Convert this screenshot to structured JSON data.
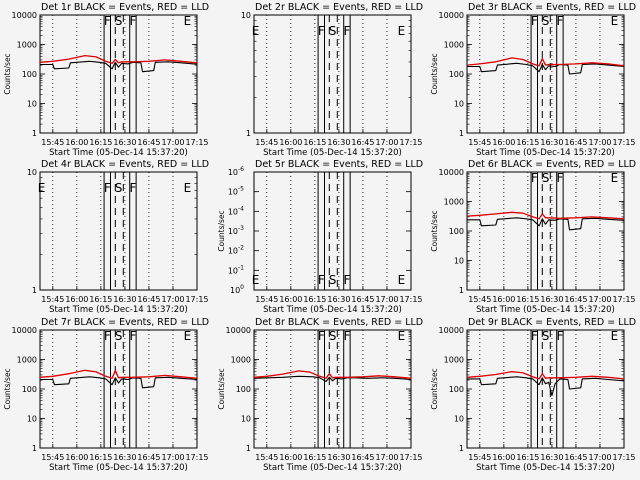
{
  "figure": {
    "background": "#f4f4f4",
    "colors": {
      "events": "#000000",
      "lld": "#dd0000",
      "axes": "#000000"
    }
  },
  "chart_data": [
    {
      "type": "line",
      "title": "Det 1r BLACK = Events, RED = LLD",
      "xlabel": "Start Time (05-Dec-14 15:37:20)",
      "ylabel": "Counts/sec",
      "xlim": [
        "15:37",
        "17:15"
      ],
      "ylim": [
        1,
        10000
      ],
      "yscale": "log",
      "x_ticks": [
        "15:45",
        "16:00",
        "16:15",
        "16:30",
        "16:45",
        "17:00",
        "17:15"
      ],
      "y_ticks": [
        "1",
        "10",
        "100",
        "1000",
        "10000"
      ],
      "solid_lines": [
        "16:17",
        "16:21",
        "16:33",
        "16:37"
      ],
      "dashed_lines": [
        "16:24",
        "16:29"
      ],
      "letters": [
        [
          "F",
          "16:19"
        ],
        [
          "S",
          "16:26"
        ],
        [
          "F",
          "16:35"
        ],
        [
          "E",
          "17:09"
        ]
      ],
      "letter_pos": "top",
      "grid": true,
      "series": [
        {
          "name": "Events",
          "x": [
            "15:37",
            "15:45",
            "15:46",
            "15:55",
            "15:56",
            "16:08",
            "16:14",
            "16:18",
            "16:22",
            "16:24",
            "16:26",
            "16:28",
            "16:32",
            "16:35",
            "16:40",
            "16:41",
            "16:48",
            "16:49",
            "16:57",
            "17:05",
            "17:15"
          ],
          "values": [
            210,
            210,
            150,
            160,
            240,
            270,
            250,
            230,
            150,
            250,
            170,
            230,
            220,
            250,
            240,
            120,
            130,
            250,
            260,
            240,
            215
          ]
        },
        {
          "name": "LLD",
          "x": [
            "15:37",
            "15:45",
            "15:55",
            "16:05",
            "16:12",
            "16:18",
            "16:22",
            "16:24",
            "16:26",
            "16:28",
            "16:35",
            "16:45",
            "16:55",
            "17:05",
            "17:15"
          ],
          "values": [
            250,
            270,
            320,
            420,
            380,
            270,
            230,
            310,
            240,
            260,
            260,
            270,
            300,
            270,
            240
          ]
        }
      ]
    },
    {
      "type": "line",
      "title": "Det 2r BLACK = Events, RED = LLD",
      "xlabel": "Start Time (05-Dec-14 15:37:20)",
      "ylabel": "",
      "xlim": [
        "15:37",
        "17:15"
      ],
      "ylim": [
        1,
        10
      ],
      "yscale": "log",
      "x_ticks": [
        "15:45",
        "16:00",
        "16:15",
        "16:30",
        "16:45",
        "17:00",
        "17:15"
      ],
      "y_ticks": [
        "1",
        "10"
      ],
      "solid_lines": [
        "16:17",
        "16:21",
        "16:33",
        "16:37"
      ],
      "dashed_lines": [
        "16:24",
        "16:29"
      ],
      "letters": [
        [
          "E",
          "15:38"
        ],
        [
          "F",
          "16:19"
        ],
        [
          "S",
          "16:26"
        ],
        [
          "F",
          "16:35"
        ],
        [
          "E",
          "17:09"
        ]
      ],
      "letter_pos": "upper",
      "grid": true,
      "series": []
    },
    {
      "type": "line",
      "title": "Det 3r BLACK = Events, RED = LLD",
      "xlabel": "Start Time (05-Dec-14 15:37:20)",
      "ylabel": "Counts/sec",
      "xlim": [
        "15:37",
        "17:15"
      ],
      "ylim": [
        1,
        10000
      ],
      "yscale": "log",
      "x_ticks": [
        "15:45",
        "16:00",
        "16:15",
        "16:30",
        "16:45",
        "17:00",
        "17:15"
      ],
      "y_ticks": [
        "1",
        "10",
        "100",
        "1000",
        "10000"
      ],
      "solid_lines": [
        "16:17",
        "16:21",
        "16:33",
        "16:37"
      ],
      "dashed_lines": [
        "16:24",
        "16:29"
      ],
      "letters": [
        [
          "F",
          "16:19"
        ],
        [
          "S",
          "16:26"
        ],
        [
          "F",
          "16:35"
        ],
        [
          "E",
          "17:09"
        ]
      ],
      "letter_pos": "top",
      "grid": true,
      "series": [
        {
          "name": "Events",
          "x": [
            "15:37",
            "15:45",
            "15:46",
            "15:55",
            "15:56",
            "16:08",
            "16:14",
            "16:18",
            "16:22",
            "16:24",
            "16:26",
            "16:28",
            "16:32",
            "16:35",
            "16:40",
            "16:41",
            "16:48",
            "16:49",
            "16:57",
            "17:05",
            "17:15"
          ],
          "values": [
            180,
            180,
            120,
            130,
            200,
            230,
            210,
            190,
            120,
            210,
            140,
            190,
            180,
            210,
            200,
            100,
            110,
            210,
            220,
            200,
            180
          ]
        },
        {
          "name": "LLD",
          "x": [
            "15:37",
            "15:45",
            "15:55",
            "16:05",
            "16:12",
            "16:18",
            "16:22",
            "16:24",
            "16:26",
            "16:28",
            "16:35",
            "16:45",
            "16:55",
            "17:05",
            "17:15"
          ],
          "values": [
            200,
            220,
            260,
            350,
            310,
            220,
            190,
            330,
            200,
            210,
            210,
            220,
            240,
            220,
            190
          ]
        }
      ]
    },
    {
      "type": "line",
      "title": "Det 4r BLACK = Events, RED = LLD",
      "xlabel": "Start Time (05-Dec-14 15:37:20)",
      "ylabel": "",
      "xlim": [
        "15:37",
        "17:15"
      ],
      "ylim": [
        1,
        10
      ],
      "yscale": "log",
      "x_ticks": [
        "15:45",
        "16:00",
        "16:15",
        "16:30",
        "16:45",
        "17:00",
        "17:15"
      ],
      "y_ticks": [
        "1",
        "10"
      ],
      "solid_lines": [
        "16:17",
        "16:21",
        "16:33",
        "16:37"
      ],
      "dashed_lines": [
        "16:24",
        "16:29"
      ],
      "letters": [
        [
          "E",
          "15:38"
        ],
        [
          "F",
          "16:19"
        ],
        [
          "S",
          "16:26"
        ],
        [
          "F",
          "16:35"
        ],
        [
          "E",
          "17:09"
        ]
      ],
      "letter_pos": "upper",
      "grid": true,
      "series": []
    },
    {
      "type": "line",
      "title": "Det 5r BLACK = Events, RED = LLD",
      "xlabel": "Start Time (05-Dec-14 15:37:20)",
      "ylabel": "Counts/sec",
      "xlim": [
        "15:37",
        "17:15"
      ],
      "ylim": [
        1,
        1e-06
      ],
      "yscale": "log",
      "y_ticks_exp": [
        0,
        -1,
        -2,
        -3,
        -4,
        -5,
        -6
      ],
      "x_ticks": [
        "15:45",
        "16:00",
        "16:15",
        "16:30",
        "16:45",
        "17:00",
        "17:15"
      ],
      "solid_lines": [
        "16:17",
        "16:21",
        "16:33",
        "16:37"
      ],
      "dashed_lines": [
        "16:24",
        "16:29"
      ],
      "letters": [
        [
          "E",
          "15:38"
        ],
        [
          "F",
          "16:19"
        ],
        [
          "S",
          "16:26"
        ],
        [
          "F",
          "16:35"
        ],
        [
          "E",
          "17:09"
        ]
      ],
      "letter_pos": "bottom",
      "grid": true,
      "series": []
    },
    {
      "type": "line",
      "title": "Det 6r BLACK = Events, RED = LLD",
      "xlabel": "Start Time (05-Dec-14 15:37:20)",
      "ylabel": "Counts/sec",
      "xlim": [
        "15:37",
        "17:15"
      ],
      "ylim": [
        1,
        10000
      ],
      "yscale": "log",
      "x_ticks": [
        "15:45",
        "16:00",
        "16:15",
        "16:30",
        "16:45",
        "17:00",
        "17:15"
      ],
      "y_ticks": [
        "1",
        "10",
        "100",
        "1000",
        "10000"
      ],
      "solid_lines": [
        "16:17",
        "16:21",
        "16:33",
        "16:37"
      ],
      "dashed_lines": [
        "16:24",
        "16:29"
      ],
      "letters": [
        [
          "F",
          "16:19"
        ],
        [
          "S",
          "16:26"
        ],
        [
          "F",
          "16:35"
        ],
        [
          "E",
          "17:09"
        ]
      ],
      "letter_pos": "top",
      "grid": true,
      "series": [
        {
          "name": "Events",
          "x": [
            "15:37",
            "15:45",
            "15:46",
            "15:55",
            "15:56",
            "16:08",
            "16:14",
            "16:18",
            "16:22",
            "16:24",
            "16:26",
            "16:28",
            "16:32",
            "16:35",
            "16:40",
            "16:41",
            "16:48",
            "16:49",
            "16:57",
            "17:05",
            "17:15"
          ],
          "values": [
            240,
            240,
            150,
            160,
            250,
            280,
            260,
            240,
            150,
            260,
            170,
            240,
            230,
            260,
            250,
            110,
            120,
            260,
            270,
            250,
            230
          ]
        },
        {
          "name": "LLD",
          "x": [
            "15:37",
            "15:45",
            "15:55",
            "16:05",
            "16:12",
            "16:18",
            "16:22",
            "16:24",
            "16:26",
            "16:28",
            "16:35",
            "16:45",
            "16:55",
            "17:05",
            "17:15"
          ],
          "values": [
            320,
            340,
            380,
            430,
            400,
            300,
            260,
            380,
            280,
            280,
            270,
            280,
            300,
            280,
            260
          ]
        }
      ]
    },
    {
      "type": "line",
      "title": "Det 7r BLACK = Events, RED = LLD",
      "xlabel": "Start Time (05-Dec-14 15:37:20)",
      "ylabel": "Counts/sec",
      "xlim": [
        "15:37",
        "17:15"
      ],
      "ylim": [
        1,
        10000
      ],
      "yscale": "log",
      "x_ticks": [
        "15:45",
        "16:00",
        "16:15",
        "16:30",
        "16:45",
        "17:00",
        "17:15"
      ],
      "y_ticks": [
        "1",
        "10",
        "100",
        "1000",
        "10000"
      ],
      "solid_lines": [
        "16:17",
        "16:21",
        "16:33",
        "16:37"
      ],
      "dashed_lines": [
        "16:24",
        "16:29"
      ],
      "letters": [
        [
          "F",
          "16:19"
        ],
        [
          "S",
          "16:26"
        ],
        [
          "F",
          "16:35"
        ],
        [
          "E",
          "17:09"
        ]
      ],
      "letter_pos": "top",
      "grid": true,
      "series": [
        {
          "name": "Events",
          "x": [
            "15:37",
            "15:45",
            "15:46",
            "15:55",
            "15:56",
            "16:08",
            "16:14",
            "16:18",
            "16:22",
            "16:24",
            "16:26",
            "16:28",
            "16:32",
            "16:35",
            "16:40",
            "16:41",
            "16:48",
            "16:49",
            "16:57",
            "17:05",
            "17:15"
          ],
          "values": [
            210,
            210,
            140,
            150,
            230,
            260,
            240,
            220,
            140,
            240,
            160,
            220,
            210,
            240,
            230,
            110,
            120,
            240,
            250,
            230,
            210
          ]
        },
        {
          "name": "LLD",
          "x": [
            "15:37",
            "15:45",
            "15:55",
            "16:05",
            "16:12",
            "16:18",
            "16:22",
            "16:24",
            "16:26",
            "16:28",
            "16:35",
            "16:45",
            "16:55",
            "17:05",
            "17:15"
          ],
          "values": [
            250,
            270,
            330,
            430,
            380,
            270,
            230,
            420,
            240,
            250,
            250,
            260,
            290,
            260,
            230
          ]
        }
      ]
    },
    {
      "type": "line",
      "title": "Det 8r BLACK = Events, RED = LLD",
      "xlabel": "Start Time (05-Dec-14 15:37:20)",
      "ylabel": "Counts/sec",
      "xlim": [
        "15:37",
        "17:15"
      ],
      "ylim": [
        1,
        10000
      ],
      "yscale": "log",
      "x_ticks": [
        "15:45",
        "16:00",
        "16:15",
        "16:30",
        "16:45",
        "17:00",
        "17:15"
      ],
      "y_ticks": [
        "1",
        "10",
        "100",
        "1000",
        "10000"
      ],
      "solid_lines": [
        "16:17",
        "16:21",
        "16:33",
        "16:37"
      ],
      "dashed_lines": [
        "16:24",
        "16:29"
      ],
      "letters": [
        [
          "F",
          "16:19"
        ],
        [
          "S",
          "16:26"
        ],
        [
          "F",
          "16:35"
        ],
        [
          "E",
          "17:09"
        ]
      ],
      "letter_pos": "top",
      "grid": true,
      "series": [
        {
          "name": "Events",
          "x": [
            "15:37",
            "15:45",
            "15:55",
            "16:05",
            "16:14",
            "16:18",
            "16:22",
            "16:24",
            "16:26",
            "16:28",
            "16:32",
            "16:35",
            "16:40",
            "16:48",
            "16:57",
            "17:05",
            "17:15"
          ],
          "values": [
            230,
            240,
            250,
            270,
            260,
            240,
            180,
            250,
            190,
            230,
            220,
            240,
            240,
            230,
            240,
            230,
            210
          ]
        },
        {
          "name": "LLD",
          "x": [
            "15:37",
            "15:45",
            "15:55",
            "16:05",
            "16:12",
            "16:18",
            "16:22",
            "16:24",
            "16:26",
            "16:28",
            "16:35",
            "16:45",
            "16:55",
            "17:05",
            "17:15"
          ],
          "values": [
            250,
            270,
            320,
            410,
            370,
            270,
            230,
            330,
            240,
            250,
            250,
            260,
            280,
            260,
            230
          ]
        }
      ]
    },
    {
      "type": "line",
      "title": "Det 9r BLACK = Events, RED = LLD",
      "xlabel": "Start Time (05-Dec-14 15:37:20)",
      "ylabel": "Counts/sec",
      "xlim": [
        "15:37",
        "17:15"
      ],
      "ylim": [
        1,
        10000
      ],
      "yscale": "log",
      "x_ticks": [
        "15:45",
        "16:00",
        "16:15",
        "16:30",
        "16:45",
        "17:00",
        "17:15"
      ],
      "y_ticks": [
        "1",
        "10",
        "100",
        "1000",
        "10000"
      ],
      "solid_lines": [
        "16:17",
        "16:21",
        "16:33",
        "16:37"
      ],
      "dashed_lines": [
        "16:24",
        "16:29"
      ],
      "letters": [
        [
          "F",
          "16:19"
        ],
        [
          "S",
          "16:26"
        ],
        [
          "F",
          "16:35"
        ],
        [
          "E",
          "17:09"
        ]
      ],
      "letter_pos": "top",
      "grid": true,
      "series": [
        {
          "name": "Events",
          "x": [
            "15:37",
            "15:45",
            "15:46",
            "15:55",
            "15:56",
            "16:08",
            "16:14",
            "16:18",
            "16:22",
            "16:24",
            "16:26",
            "16:28",
            "16:30",
            "16:32",
            "16:35",
            "16:40",
            "16:41",
            "16:48",
            "16:49",
            "16:57",
            "17:05",
            "17:15"
          ],
          "values": [
            220,
            220,
            140,
            150,
            230,
            260,
            240,
            220,
            140,
            240,
            150,
            170,
            60,
            150,
            220,
            210,
            100,
            110,
            220,
            230,
            210,
            190
          ]
        },
        {
          "name": "LLD",
          "x": [
            "15:37",
            "15:45",
            "15:55",
            "16:05",
            "16:12",
            "16:18",
            "16:22",
            "16:24",
            "16:26",
            "16:28",
            "16:35",
            "16:45",
            "16:55",
            "17:05",
            "17:15"
          ],
          "values": [
            250,
            270,
            310,
            390,
            350,
            260,
            220,
            330,
            230,
            240,
            240,
            250,
            270,
            250,
            220
          ]
        }
      ]
    }
  ]
}
